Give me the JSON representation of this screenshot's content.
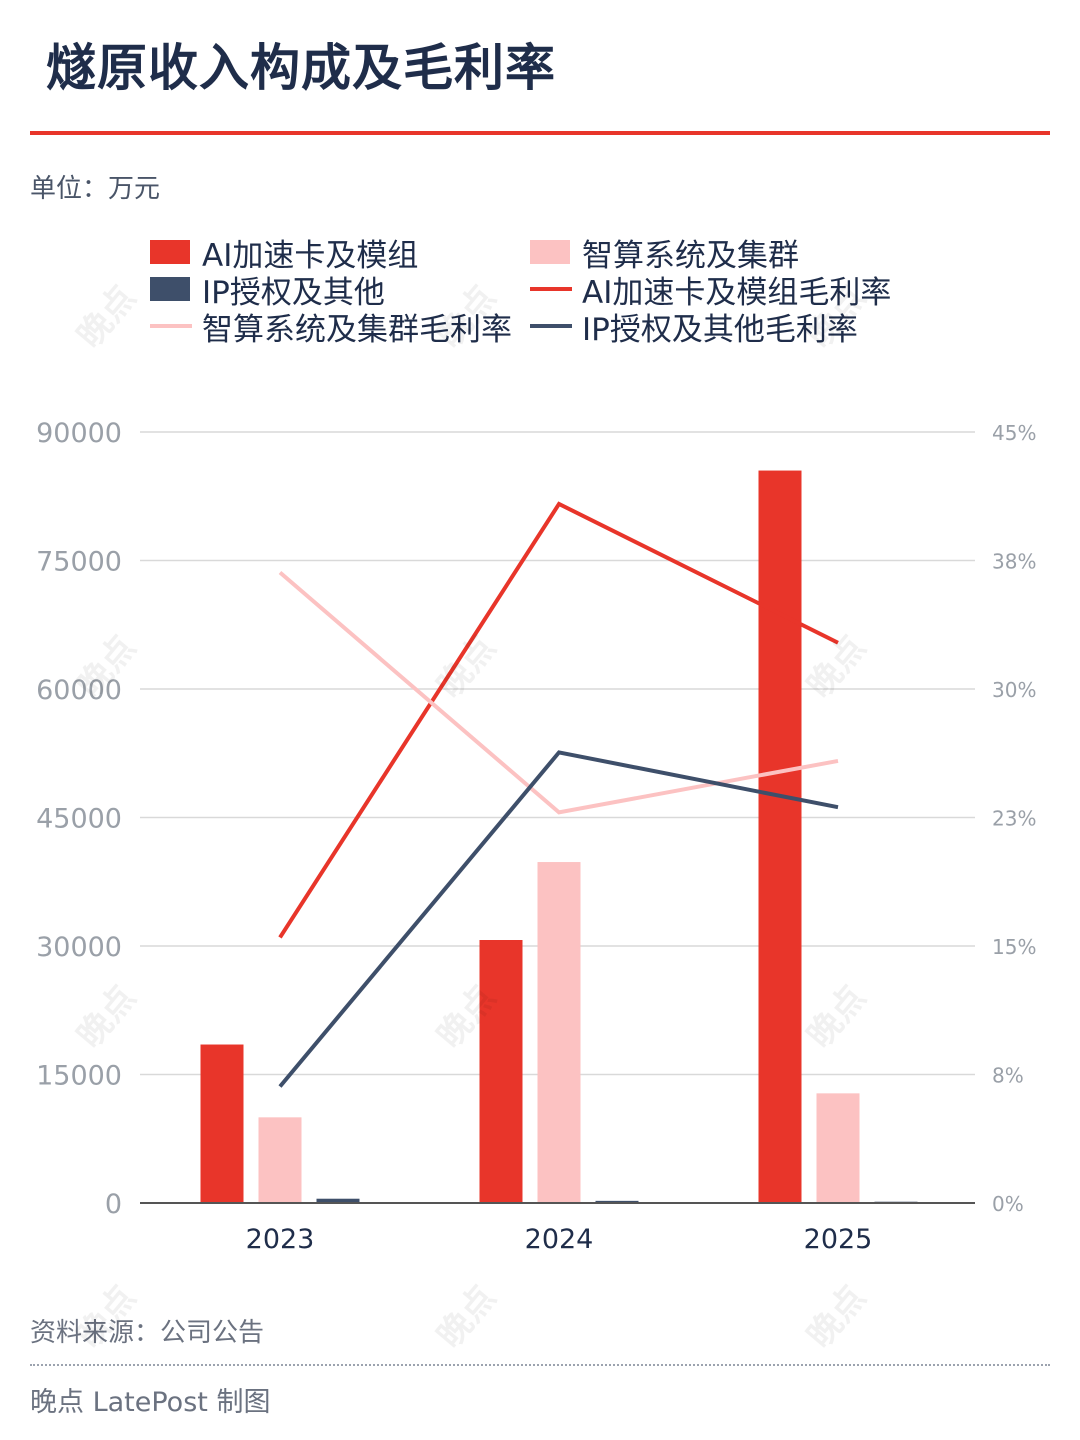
{
  "header": {
    "title": "燧原收入构成及毛利率",
    "unit": "单位：万元"
  },
  "legend": {
    "items": [
      {
        "label": "AI加速卡及模组",
        "kind": "bar",
        "color": "#e8352a"
      },
      {
        "label": "智算系统及集群",
        "kind": "bar",
        "color": "#fcc2c2"
      },
      {
        "label": "IP授权及其他",
        "kind": "bar",
        "color": "#3e4f6a"
      },
      {
        "label": "AI加速卡及模组毛利率",
        "kind": "line",
        "color": "#e8352a"
      },
      {
        "label": "智算系统及集群毛利率",
        "kind": "line",
        "color": "#fcc2c2"
      },
      {
        "label": "IP授权及其他毛利率",
        "kind": "line",
        "color": "#3e4f6a"
      }
    ]
  },
  "chart_data": {
    "type": "bar",
    "categories": [
      "2023",
      "2024",
      "2025"
    ],
    "left_ticks": [
      "0",
      "15000",
      "30000",
      "45000",
      "60000",
      "75000",
      "90000"
    ],
    "right_ticks": [
      "0%",
      "8%",
      "15%",
      "23%",
      "30%",
      "38%",
      "45%"
    ],
    "ylim_left": [
      0,
      90000
    ],
    "ylim_right": [
      0,
      45
    ],
    "grid": true,
    "bar_series": [
      {
        "name": "AI加速卡及模组",
        "color": "#e8352a",
        "values": [
          18500,
          30700,
          85500
        ]
      },
      {
        "name": "智算系统及集群",
        "color": "#fcc2c2",
        "values": [
          10000,
          39800,
          12800
        ]
      },
      {
        "name": "IP授权及其他",
        "color": "#3e4f6a",
        "values": [
          500,
          250,
          150
        ]
      }
    ],
    "line_series": [
      {
        "name": "AI加速卡及模组毛利率",
        "color": "#e8352a",
        "values": [
          15.5,
          40.8,
          32.7
        ]
      },
      {
        "name": "智算系统及集群毛利率",
        "color": "#fcc2c2",
        "values": [
          36.8,
          22.8,
          25.8
        ]
      },
      {
        "name": "IP授权及其他毛利率",
        "color": "#3e4f6a",
        "values": [
          6.8,
          26.3,
          23.1
        ]
      }
    ]
  },
  "footer": {
    "source": "资料来源：公司公告",
    "credit": "晚点 LatePost 制图"
  },
  "watermark": {
    "text": "晚点"
  }
}
